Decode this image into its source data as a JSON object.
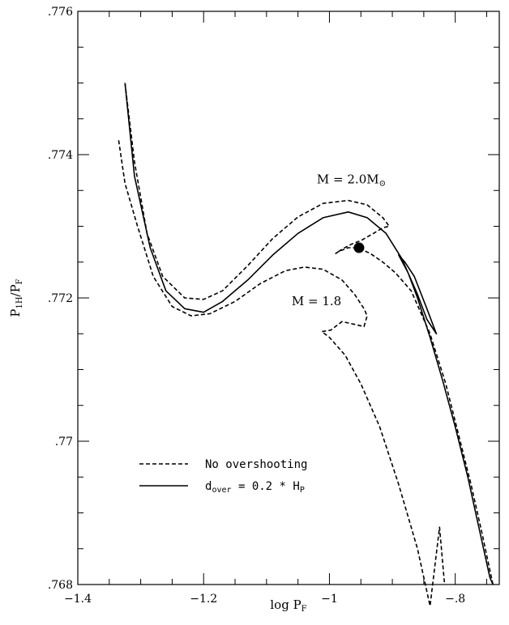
{
  "chart_data": {
    "type": "line",
    "xlabel": "log P",
    "xlabel_sub": "F",
    "ylabel": "P",
    "ylabel_parts": [
      "P",
      "1H",
      "/P",
      "F"
    ],
    "xlim": [
      -1.4,
      -0.73
    ],
    "ylim": [
      0.768,
      0.776
    ],
    "x_ticks": [
      -1.4,
      -1.2,
      -1,
      -0.8
    ],
    "x_tick_labels": [
      "−1.4",
      "−1.2",
      "−1",
      "−.8"
    ],
    "y_ticks": [
      0.768,
      0.77,
      0.772,
      0.774,
      0.776
    ],
    "y_tick_labels": [
      ".768",
      ".77",
      ".772",
      ".774",
      ".776"
    ],
    "annotations": [
      {
        "text": "M = 2.0M",
        "suffix": "⊙",
        "x": -1.02,
        "y": 0.7736
      },
      {
        "text": "M = 1.8",
        "x": -1.06,
        "y": 0.7719
      }
    ],
    "legend": [
      {
        "label": "No overshooting",
        "style": "dashed"
      },
      {
        "label_parts": [
          "d",
          "over",
          " = 0.2 * H",
          "P"
        ],
        "style": "solid"
      }
    ],
    "marker": {
      "x": -0.953,
      "y": 0.7727
    },
    "series": [
      {
        "style": "solid",
        "points": [
          [
            -1.325,
            0.775
          ],
          [
            -1.31,
            0.7737
          ],
          [
            -1.285,
            0.7727
          ],
          [
            -1.26,
            0.7721
          ],
          [
            -1.23,
            0.77185
          ],
          [
            -1.2,
            0.7718
          ],
          [
            -1.17,
            0.77195
          ],
          [
            -1.13,
            0.77225
          ],
          [
            -1.09,
            0.7726
          ],
          [
            -1.05,
            0.7729
          ],
          [
            -1.01,
            0.77312
          ],
          [
            -0.97,
            0.7732
          ],
          [
            -0.94,
            0.77312
          ],
          [
            -0.91,
            0.7729
          ],
          [
            -0.885,
            0.77255
          ],
          [
            -0.86,
            0.77205
          ],
          [
            -0.845,
            0.7717
          ],
          [
            -0.83,
            0.7715
          ],
          [
            -0.845,
            0.77185
          ],
          [
            -0.865,
            0.7723
          ],
          [
            -0.88,
            0.7725
          ],
          [
            -0.89,
            0.7726
          ],
          [
            -0.875,
            0.77235
          ],
          [
            -0.86,
            0.772
          ],
          [
            -0.84,
            0.77145
          ],
          [
            -0.82,
            0.77085
          ],
          [
            -0.8,
            0.7702
          ],
          [
            -0.78,
            0.7695
          ],
          [
            -0.76,
            0.7687
          ],
          [
            -0.745,
            0.7681
          ],
          [
            -0.74,
            0.768
          ]
        ]
      },
      {
        "style": "dashed",
        "points": [
          [
            -1.325,
            0.775
          ],
          [
            -1.31,
            0.7739
          ],
          [
            -1.29,
            0.7729
          ],
          [
            -1.265,
            0.7723
          ],
          [
            -1.23,
            0.772
          ],
          [
            -1.2,
            0.77198
          ],
          [
            -1.17,
            0.7721
          ],
          [
            -1.13,
            0.77245
          ],
          [
            -1.09,
            0.77283
          ],
          [
            -1.05,
            0.77313
          ],
          [
            -1.01,
            0.77332
          ],
          [
            -0.97,
            0.77336
          ],
          [
            -0.94,
            0.7733
          ],
          [
            -0.915,
            0.77312
          ],
          [
            -0.905,
            0.773
          ],
          [
            -0.915,
            0.77298
          ],
          [
            -0.93,
            0.7729
          ],
          [
            -0.95,
            0.7728
          ],
          [
            -0.965,
            0.77275
          ],
          [
            -0.98,
            0.77268
          ],
          [
            -0.99,
            0.77262
          ],
          [
            -0.985,
            0.77265
          ],
          [
            -0.97,
            0.7727
          ],
          [
            -0.955,
            0.7727
          ],
          [
            -0.935,
            0.77262
          ],
          [
            -0.915,
            0.7725
          ],
          [
            -0.895,
            0.77235
          ],
          [
            -0.87,
            0.7721
          ],
          [
            -0.84,
            0.7715
          ],
          [
            -0.815,
            0.7708
          ],
          [
            -0.795,
            0.7701
          ],
          [
            -0.775,
            0.7694
          ],
          [
            -0.757,
            0.7687
          ],
          [
            -0.745,
            0.7682
          ],
          [
            -0.74,
            0.768
          ]
        ]
      },
      {
        "style": "dashed",
        "points": [
          [
            -1.335,
            0.7742
          ],
          [
            -1.325,
            0.7736
          ],
          [
            -1.305,
            0.773
          ],
          [
            -1.28,
            0.7723
          ],
          [
            -1.25,
            0.77188
          ],
          [
            -1.22,
            0.77175
          ],
          [
            -1.19,
            0.77178
          ],
          [
            -1.15,
            0.77195
          ],
          [
            -1.11,
            0.7722
          ],
          [
            -1.07,
            0.77238
          ],
          [
            -1.04,
            0.77243
          ],
          [
            -1.01,
            0.7724
          ],
          [
            -0.98,
            0.77225
          ],
          [
            -0.96,
            0.77205
          ],
          [
            -0.945,
            0.77185
          ],
          [
            -0.94,
            0.77175
          ],
          [
            -0.945,
            0.7716
          ],
          [
            -0.96,
            0.77163
          ],
          [
            -0.98,
            0.77167
          ],
          [
            -0.998,
            0.77155
          ],
          [
            -1.012,
            0.77153
          ],
          [
            -1.0,
            0.77145
          ],
          [
            -0.975,
            0.7712
          ],
          [
            -0.95,
            0.7708
          ],
          [
            -0.92,
            0.7702
          ],
          [
            -0.89,
            0.7694
          ],
          [
            -0.86,
            0.7685
          ],
          [
            -0.84,
            0.7677
          ],
          [
            -0.825,
            0.7688
          ],
          [
            -0.817,
            0.768
          ]
        ]
      }
    ]
  }
}
